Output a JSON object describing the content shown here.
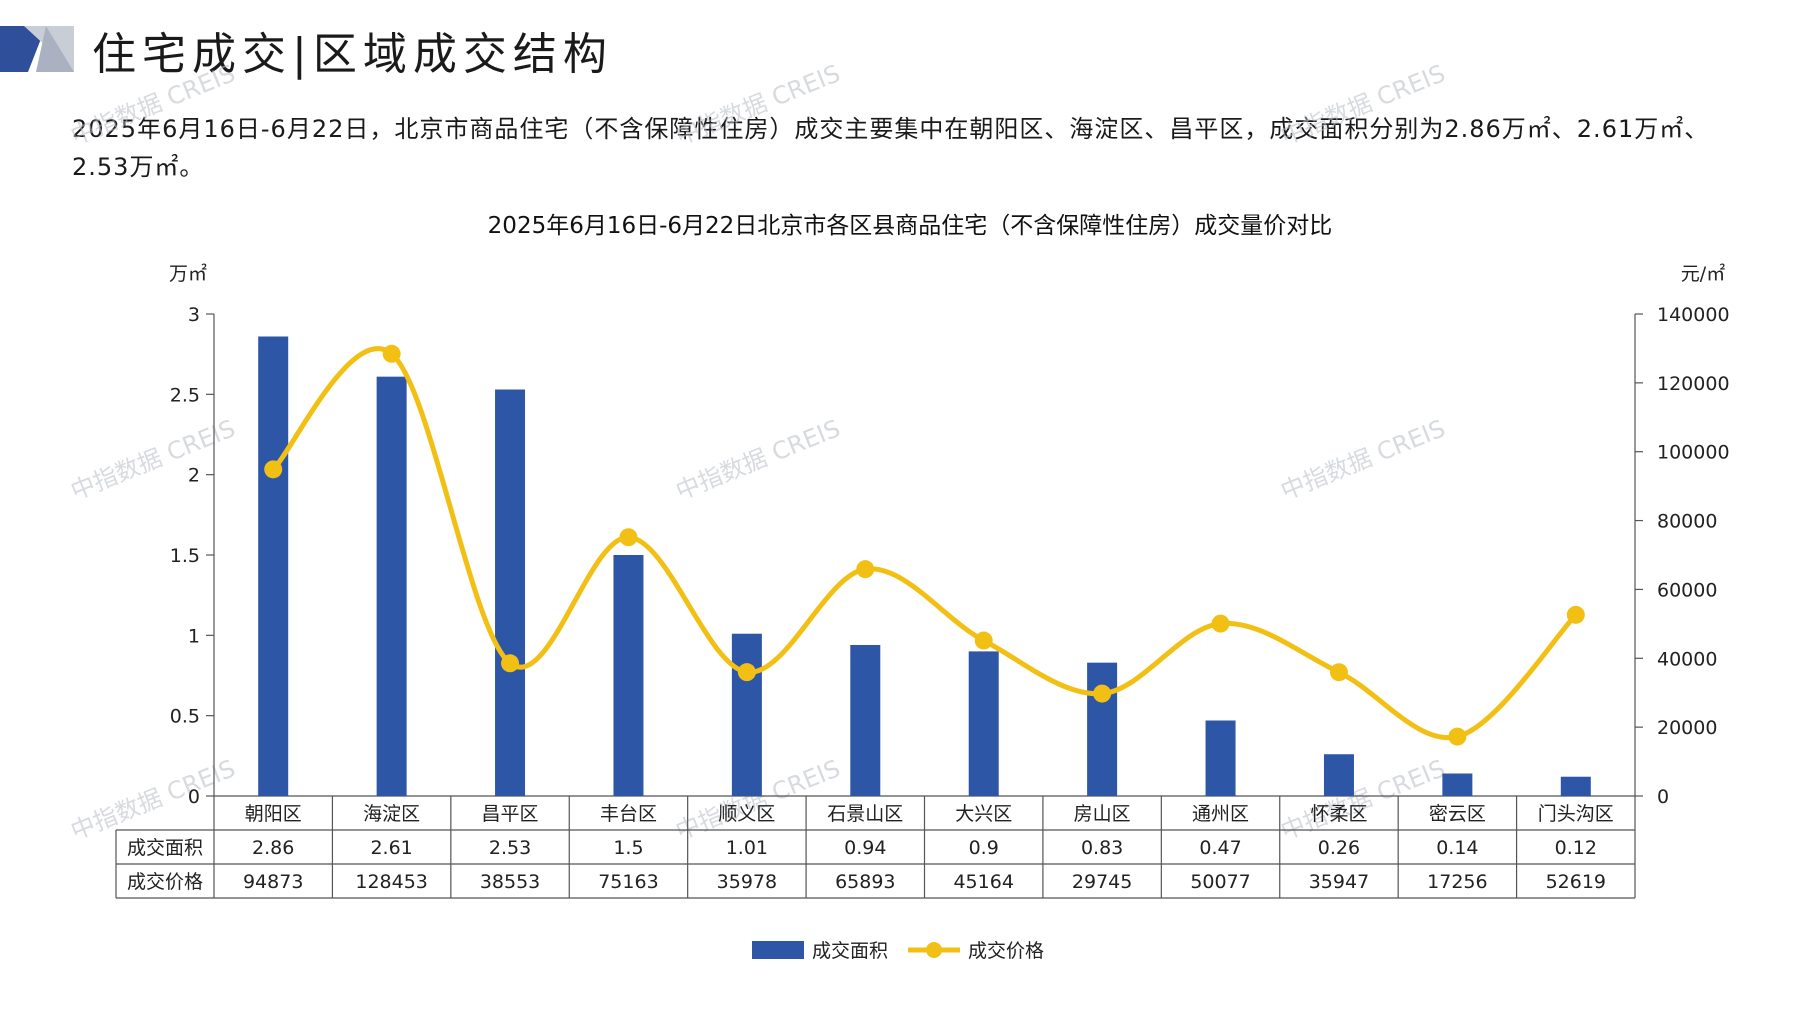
{
  "header": {
    "title": "住宅成交|区域成交结构",
    "summary": "2025年6月16日-6月22日，北京市商品住宅（不含保障性住房）成交主要集中在朝阳区、海淀区、昌平区，成交面积分别为2.86万㎡、2.61万㎡、2.53万㎡。"
  },
  "watermark": "中指数据 CREIS",
  "colors": {
    "bar": "#2d56a6",
    "line": "#f2c014",
    "deco_dark": "#2f4f9a",
    "deco_light": "#c9cdd6"
  },
  "chart_data": {
    "type": "bar",
    "title": "2025年6月16日-6月22日北京市各区县商品住宅（不含保障性住房）成交量价对比",
    "left_unit": "万㎡",
    "right_unit": "元/㎡",
    "categories": [
      "朝阳区",
      "海淀区",
      "昌平区",
      "丰台区",
      "顺义区",
      "石景山区",
      "大兴区",
      "房山区",
      "通州区",
      "怀柔区",
      "密云区",
      "门头沟区"
    ],
    "series": [
      {
        "name": "成交面积",
        "type": "bar",
        "axis": "left",
        "values": [
          2.86,
          2.61,
          2.53,
          1.5,
          1.01,
          0.94,
          0.9,
          0.83,
          0.47,
          0.26,
          0.14,
          0.12
        ],
        "labels": [
          "2.86",
          "2.61",
          "2.53",
          "1.5",
          "1.01",
          "0.94",
          "0.9",
          "0.83",
          "0.47",
          "0.26",
          "0.14",
          "0.12"
        ]
      },
      {
        "name": "成交价格",
        "type": "line",
        "axis": "right",
        "values": [
          94873,
          128453,
          38553,
          75163,
          35978,
          65893,
          45164,
          29745,
          50077,
          35947,
          17256,
          52619
        ],
        "labels": [
          "94873",
          "128453",
          "38553",
          "75163",
          "35978",
          "65893",
          "45164",
          "29745",
          "50077",
          "35947",
          "17256",
          "52619"
        ]
      }
    ],
    "left_axis": {
      "range": [
        0,
        3
      ],
      "ticks": [
        "0",
        "0.5",
        "1",
        "1.5",
        "2",
        "2.5",
        "3"
      ]
    },
    "right_axis": {
      "range": [
        0,
        140000
      ],
      "ticks": [
        "0",
        "20000",
        "40000",
        "60000",
        "80000",
        "100000",
        "120000",
        "140000"
      ]
    },
    "grid": false,
    "legend": "bottom-center",
    "data_table": true
  }
}
